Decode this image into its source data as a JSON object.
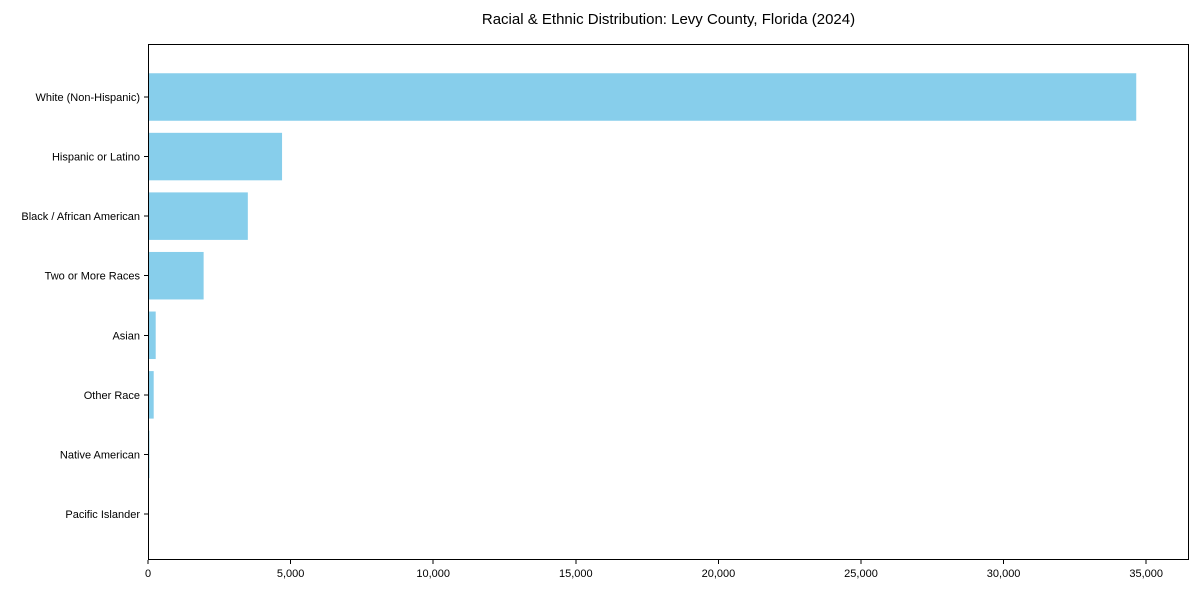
{
  "chart_data": {
    "type": "bar",
    "orientation": "horizontal",
    "title": "Racial & Ethnic Distribution: Levy County, Florida (2024)",
    "categories": [
      "White (Non-Hispanic)",
      "Hispanic or Latino",
      "Black / African American",
      "Two or More Races",
      "Asian",
      "Other Race",
      "Native American",
      "Pacific Islander"
    ],
    "values": [
      34650,
      4700,
      3500,
      1950,
      270,
      200,
      50,
      10
    ],
    "xlabel": "",
    "ylabel": "",
    "xlim": [
      0,
      36500
    ],
    "xticks": [
      0,
      5000,
      10000,
      15000,
      20000,
      25000,
      30000,
      35000
    ],
    "grid": false,
    "legend": "none",
    "bar_color": "#87CEEB",
    "axis_color": "#000000",
    "background_color": "#ffffff"
  }
}
